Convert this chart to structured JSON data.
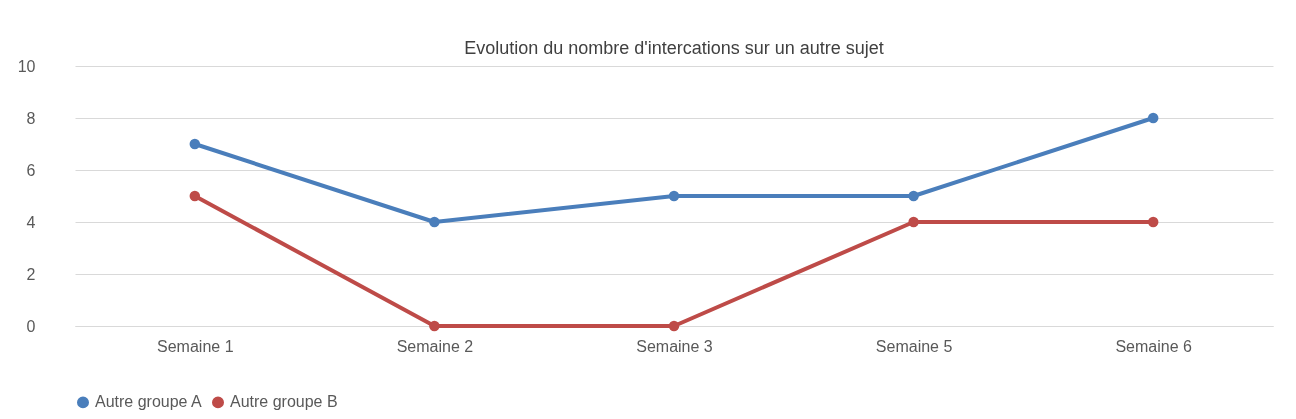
{
  "chart_data": {
    "type": "line",
    "title": "Evolution du nombre d'intercations sur un autre sujet",
    "categories": [
      "Semaine 1",
      "Semaine 2",
      "Semaine 3",
      "Semaine 5",
      "Semaine 6"
    ],
    "series": [
      {
        "name": "Autre groupe A",
        "color": "#4a7ebb",
        "values": [
          7,
          4,
          5,
          5,
          8
        ]
      },
      {
        "name": "Autre groupe B",
        "color": "#be4b48",
        "values": [
          5,
          0,
          0,
          4,
          4
        ]
      }
    ],
    "ylim": [
      0,
      10
    ],
    "yticks": [
      0,
      2,
      4,
      6,
      8,
      10
    ],
    "grid": "y",
    "legend": "bottom",
    "marker": "circle",
    "line_style": "solid"
  }
}
